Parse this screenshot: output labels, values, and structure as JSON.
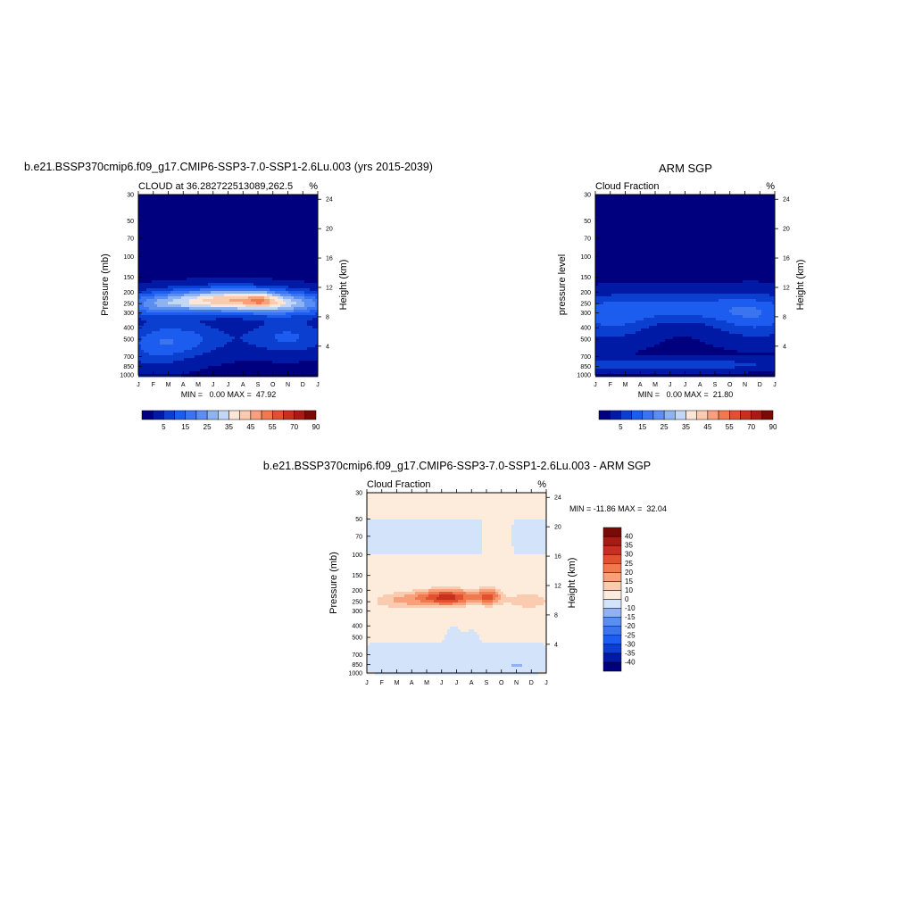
{
  "figure": {
    "model_title": "b.e21.BSSP370cmip6.f09_g17.CMIP6-SSP3-7.0-SSP1-2.6Lu.003 (yrs 2015-2039)",
    "obs_title": "ARM SGP",
    "diff_title": "b.e21.BSSP370cmip6.f09_g17.CMIP6-SSP3-7.0-SSP1-2.6Lu.003 - ARM SGP"
  },
  "chart_data": [
    {
      "type": "heatmap",
      "panel": "model",
      "subtitle_left": "CLOUD at 36.282722513089,262.5",
      "units": "%",
      "ylabel": "Pressure (mb)",
      "ylabel_right": "Height (km)",
      "x_ticks": [
        "J",
        "F",
        "M",
        "A",
        "M",
        "J",
        "J",
        "A",
        "S",
        "O",
        "N",
        "D",
        "J"
      ],
      "y_ticks": [
        30,
        50,
        70,
        100,
        150,
        200,
        250,
        300,
        400,
        500,
        700,
        850,
        1000
      ],
      "height_ticks": [
        4,
        8,
        12,
        16,
        20,
        24
      ],
      "ylim": [
        1000,
        30
      ],
      "stats": "MIN =   0.00 MAX =  47.92",
      "colorbar_labels": [
        "5",
        "15",
        "25",
        "35",
        "45",
        "55",
        "70",
        "90"
      ],
      "levels": [
        0,
        5,
        10,
        15,
        20,
        25,
        30,
        35,
        40,
        45,
        50,
        55,
        60,
        70,
        80,
        90
      ],
      "colors": [
        "#00007f",
        "#001aa6",
        "#0a3fd0",
        "#1c5df0",
        "#3a74ef",
        "#5b8ef2",
        "#8fb2f2",
        "#c2d7f6",
        "#fbe6d8",
        "#fbcbb0",
        "#f7a07a",
        "#f2784f",
        "#e3502f",
        "#c72f1e",
        "#a51c12",
        "#7a0a05"
      ],
      "features": [
        {
          "kind": "gauss",
          "x": 6.0,
          "p": 235,
          "sx": 3.2,
          "sp": 0.16,
          "amp": 44
        },
        {
          "kind": "gauss",
          "x": 8.2,
          "p": 235,
          "sx": 0.7,
          "sp": 0.12,
          "amp": 10
        },
        {
          "kind": "gauss",
          "x": 10.5,
          "p": 260,
          "sx": 2.2,
          "sp": 0.15,
          "amp": 16
        },
        {
          "kind": "gauss",
          "x": 1.0,
          "p": 260,
          "sx": 1.8,
          "sp": 0.15,
          "amp": 14
        },
        {
          "kind": "gauss",
          "x": 3.0,
          "p": 500,
          "sx": 2.2,
          "sp": 0.25,
          "amp": 12
        },
        {
          "kind": "gauss",
          "x": 10.0,
          "p": 480,
          "sx": 2.0,
          "sp": 0.22,
          "amp": 12
        },
        {
          "kind": "gauss",
          "x": 1.0,
          "p": 600,
          "sx": 1.5,
          "sp": 0.3,
          "amp": 8
        }
      ]
    },
    {
      "type": "heatmap",
      "panel": "obs",
      "subtitle_left": "Cloud Fraction",
      "units": "%",
      "ylabel": "pressure level",
      "ylabel_right": "Height (km)",
      "x_ticks": [
        "J",
        "F",
        "M",
        "A",
        "M",
        "J",
        "J",
        "A",
        "S",
        "O",
        "N",
        "D",
        "J"
      ],
      "y_ticks": [
        30,
        50,
        70,
        100,
        150,
        200,
        250,
        300,
        400,
        500,
        700,
        850,
        1000
      ],
      "height_ticks": [
        4,
        8,
        12,
        16,
        20,
        24
      ],
      "ylim": [
        1000,
        30
      ],
      "stats": "MIN =   0.00 MAX =  21.80",
      "colorbar_labels": [
        "5",
        "15",
        "25",
        "35",
        "45",
        "55",
        "70",
        "90"
      ],
      "levels": [
        0,
        5,
        10,
        15,
        20,
        25,
        30,
        35,
        40,
        45,
        50,
        55,
        60,
        70,
        80,
        90
      ],
      "colors": [
        "#00007f",
        "#001aa6",
        "#0a3fd0",
        "#1c5df0",
        "#3a74ef",
        "#5b8ef2",
        "#8fb2f2",
        "#c2d7f6",
        "#fbe6d8",
        "#fbcbb0",
        "#f7a07a",
        "#f2784f",
        "#e3502f",
        "#c72f1e",
        "#a51c12",
        "#7a0a05"
      ],
      "features": [
        {
          "kind": "gauss",
          "x": 5.5,
          "p": 270,
          "sx": 4.5,
          "sp": 0.2,
          "amp": 12
        },
        {
          "kind": "gauss",
          "x": 1.0,
          "p": 350,
          "sx": 2.0,
          "sp": 0.3,
          "amp": 10
        },
        {
          "kind": "gauss",
          "x": 10.8,
          "p": 330,
          "sx": 2.2,
          "sp": 0.3,
          "amp": 12
        },
        {
          "kind": "gauss",
          "x": 4.5,
          "p": 820,
          "sx": 6.0,
          "sp": 0.08,
          "amp": 10
        }
      ]
    },
    {
      "type": "heatmap",
      "panel": "diff",
      "subtitle_left": "Cloud Fraction",
      "units": "%",
      "ylabel": "Pressure (mb)",
      "ylabel_right": "Height (km)",
      "x_ticks": [
        "J",
        "F",
        "M",
        "A",
        "M",
        "J",
        "J",
        "A",
        "S",
        "O",
        "N",
        "D",
        "J"
      ],
      "y_ticks": [
        30,
        50,
        70,
        100,
        150,
        200,
        250,
        300,
        400,
        500,
        700,
        850,
        1000
      ],
      "height_ticks": [
        4,
        8,
        12,
        16,
        20,
        24
      ],
      "ylim": [
        1000,
        30
      ],
      "stats": "MIN = -11.86 MAX =  32.04",
      "colorbar_labels": [
        "40",
        "35",
        "30",
        "25",
        "20",
        "15",
        "10",
        "0",
        "-10",
        "-15",
        "-20",
        "-25",
        "-30",
        "-35",
        "-40"
      ],
      "levels": [
        -45,
        -40,
        -35,
        -30,
        -25,
        -20,
        -15,
        -10,
        0,
        10,
        15,
        20,
        25,
        30,
        35,
        40
      ],
      "colors": [
        "#00007f",
        "#001aa6",
        "#0a3fd0",
        "#1c5df0",
        "#3a74ef",
        "#5b8ef2",
        "#8fb2f2",
        "#d3e4fa",
        "#fdebdb",
        "#fbcbb0",
        "#f7a07a",
        "#f2784f",
        "#e3502f",
        "#c72f1e",
        "#a51c12",
        "#7a0a05"
      ],
      "features": [
        {
          "kind": "const",
          "amp": 3
        },
        {
          "kind": "gauss",
          "x": 5.4,
          "p": 230,
          "sx": 1.5,
          "sp": 0.12,
          "amp": 29
        },
        {
          "kind": "gauss",
          "x": 8.2,
          "p": 225,
          "sx": 0.55,
          "sp": 0.12,
          "amp": 19
        },
        {
          "kind": "gauss",
          "x": 2.0,
          "p": 245,
          "sx": 1.4,
          "sp": 0.13,
          "amp": 11
        },
        {
          "kind": "gauss",
          "x": 10.8,
          "p": 245,
          "sx": 1.2,
          "sp": 0.13,
          "amp": 11
        },
        {
          "kind": "band",
          "x0": 0,
          "x1": 7.7,
          "p0": 50,
          "p1": 100,
          "amp": -7
        },
        {
          "kind": "band",
          "x0": 9.8,
          "x1": 12,
          "p0": 50,
          "p1": 100,
          "amp": -7
        },
        {
          "kind": "band",
          "x0": 0,
          "x1": 12,
          "p0": 560,
          "p1": 1000,
          "amp": -7
        },
        {
          "kind": "gauss",
          "x": 5.8,
          "p": 500,
          "sx": 0.35,
          "sp": 0.15,
          "amp": -9
        },
        {
          "kind": "gauss",
          "x": 7.0,
          "p": 520,
          "sx": 0.35,
          "sp": 0.12,
          "amp": -9
        },
        {
          "kind": "gauss",
          "x": 10.0,
          "p": 850,
          "sx": 0.6,
          "sp": 0.04,
          "amp": -8
        }
      ]
    }
  ]
}
